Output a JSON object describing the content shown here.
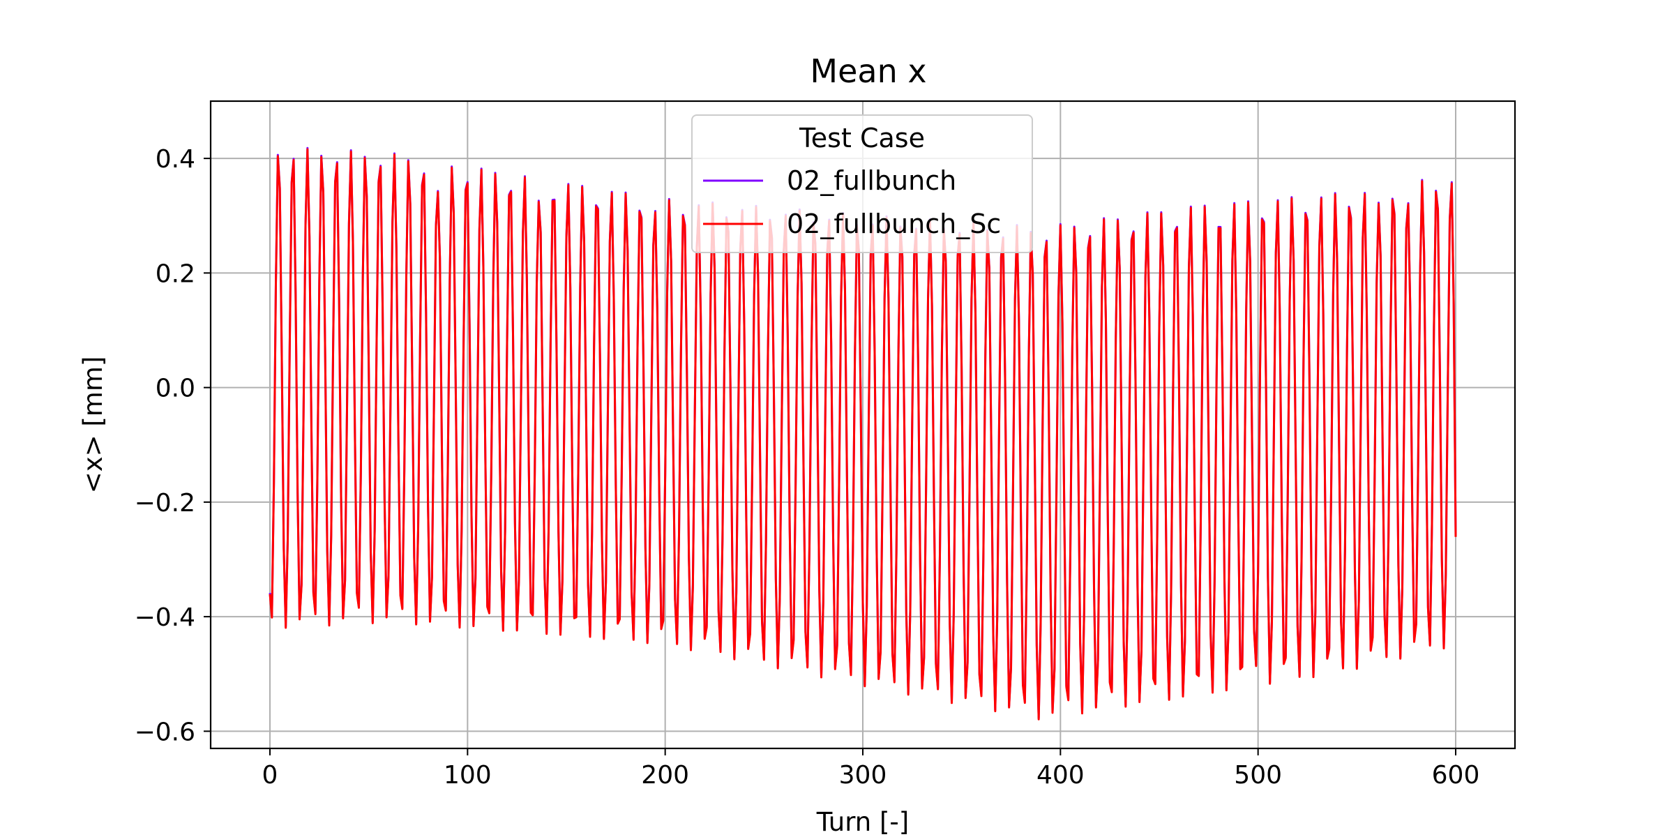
{
  "chart_data": {
    "type": "line",
    "title": "Mean x",
    "xlabel": "Turn [-]",
    "ylabel": "<x> [mm]",
    "xlim": [
      -30,
      630
    ],
    "ylim": [
      -0.63,
      0.5
    ],
    "xticks": [
      0,
      100,
      200,
      300,
      400,
      500,
      600
    ],
    "xtick_labels": [
      "0",
      "100",
      "200",
      "300",
      "400",
      "500",
      "600"
    ],
    "yticks": [
      -0.6,
      -0.4,
      -0.2,
      0.0,
      0.2,
      0.4
    ],
    "ytick_labels": [
      "−0.6",
      "−0.4",
      "−0.2",
      "0.0",
      "0.2",
      "0.4"
    ],
    "grid": true,
    "legend": {
      "title": "Test Case",
      "placement": "top-center"
    },
    "colors": {
      "02_fullbunch": "#7f00ff",
      "02_fullbunch_Sc": "#ff0000"
    },
    "oscillation": {
      "turns": 600,
      "tune_fraction": 0.1365,
      "start_value": -0.36,
      "end_value": -0.26,
      "offset_control": [
        [
          0,
          0.0
        ],
        [
          60,
          0.0
        ],
        [
          200,
          -0.06
        ],
        [
          300,
          -0.11
        ],
        [
          390,
          -0.15
        ],
        [
          470,
          -0.11
        ],
        [
          540,
          -0.08
        ],
        [
          600,
          -0.04
        ]
      ],
      "amplitude_control": [
        [
          0,
          0.42
        ],
        [
          60,
          0.41
        ],
        [
          200,
          0.39
        ],
        [
          300,
          0.41
        ],
        [
          390,
          0.43
        ],
        [
          470,
          0.43
        ],
        [
          540,
          0.42
        ],
        [
          600,
          0.41
        ]
      ],
      "top_dips": [
        [
          7,
          0.36
        ],
        [
          9,
          0.28
        ],
        [
          22,
          0.37
        ],
        [
          54,
          0.36
        ],
        [
          84,
          0.34
        ],
        [
          102,
          0.38
        ],
        [
          136,
          0.32
        ],
        [
          156,
          0.33
        ],
        [
          196,
          0.3
        ],
        [
          300,
          0.24
        ],
        [
          376,
          0.24
        ],
        [
          405,
          0.2
        ],
        [
          425,
          0.22
        ],
        [
          480,
          0.24
        ],
        [
          500,
          0.25
        ],
        [
          545,
          0.3
        ],
        [
          562,
          0.32
        ],
        [
          575,
          0.31
        ]
      ],
      "bottom_dips": [
        [
          10,
          -0.34
        ],
        [
          20,
          -0.37
        ],
        [
          34,
          -0.39
        ],
        [
          46,
          -0.36
        ],
        [
          57,
          -0.35
        ],
        [
          90,
          -0.36
        ],
        [
          114,
          -0.35
        ],
        [
          264,
          -0.45
        ],
        [
          325,
          -0.46
        ],
        [
          500,
          -0.48
        ],
        [
          570,
          -0.4
        ]
      ]
    },
    "series": [
      {
        "name": "02_fullbunch",
        "color_key": "02_fullbunch"
      },
      {
        "name": "02_fullbunch_Sc",
        "color_key": "02_fullbunch_Sc"
      }
    ]
  }
}
